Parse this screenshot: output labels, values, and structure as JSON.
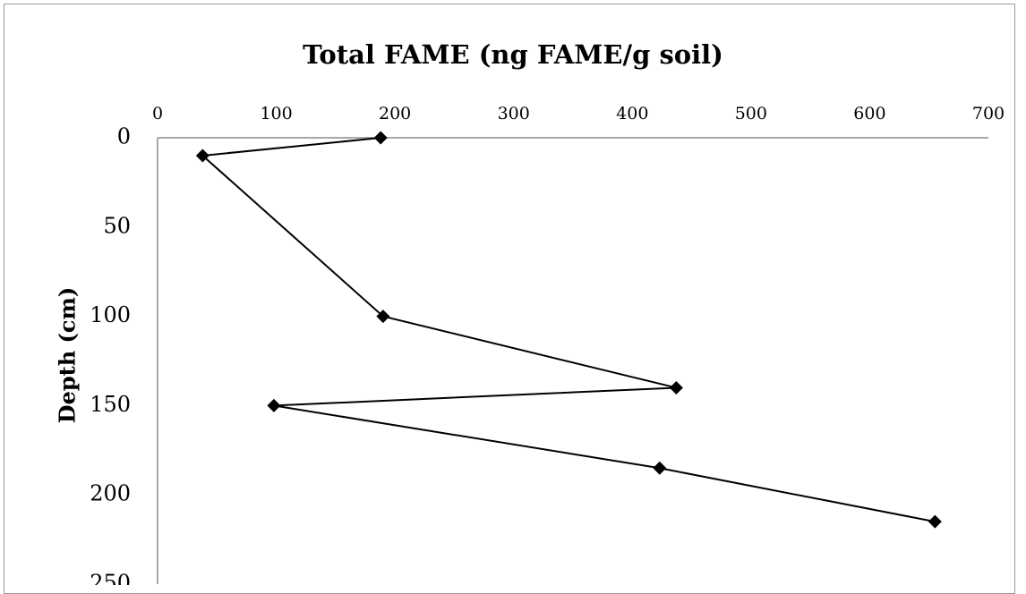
{
  "chart_data": {
    "type": "line",
    "title": "Total FAME (ng FAME/g soil)",
    "xlabel": "",
    "ylabel": "Depth (cm)",
    "xlim": [
      0,
      700
    ],
    "ylim": [
      0,
      250
    ],
    "y_inverted": true,
    "x_axis_position": "top",
    "xticks": [
      "0",
      "100",
      "200",
      "300",
      "400",
      "500",
      "600",
      "700"
    ],
    "yticks": [
      "0",
      "50",
      "100",
      "150",
      "200",
      "250"
    ],
    "grid": false,
    "legend": "none",
    "marker": "diamond",
    "colors": {
      "line": "#000000",
      "marker": "#000000",
      "axis": "#8c8c8c"
    },
    "series": [
      {
        "x": [
          188,
          38,
          190,
          437,
          98,
          423,
          655
        ],
        "y": [
          0,
          10,
          100,
          140,
          150,
          185,
          215
        ]
      }
    ]
  }
}
